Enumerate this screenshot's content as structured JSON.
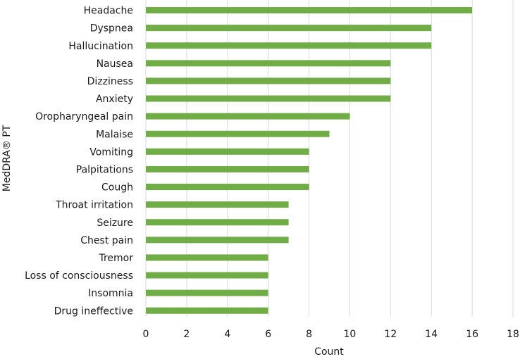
{
  "chart_data": {
    "type": "bar",
    "orientation": "horizontal",
    "categories": [
      "Headache",
      "Dyspnea",
      "Hallucination",
      "Nausea",
      "Dizziness",
      "Anxiety",
      "Oropharyngeal pain",
      "Malaise",
      "Vomiting",
      "Palpitations",
      "Cough",
      "Throat irritation",
      "Seizure",
      "Chest pain",
      "Tremor",
      "Loss of consciousness",
      "Insomnia",
      "Drug ineffective"
    ],
    "values": [
      16,
      14,
      14,
      12,
      12,
      12,
      10,
      9,
      8,
      8,
      8,
      7,
      7,
      7,
      6,
      6,
      6,
      6
    ],
    "xlabel": "Count",
    "ylabel": "MedDRA® PT",
    "xlim": [
      0,
      18
    ],
    "xticks": [
      0,
      2,
      4,
      6,
      8,
      10,
      12,
      14,
      16,
      18
    ],
    "grid": "vertical",
    "bar_color": "#70ad47",
    "grid_color": "#d9d9d9"
  }
}
